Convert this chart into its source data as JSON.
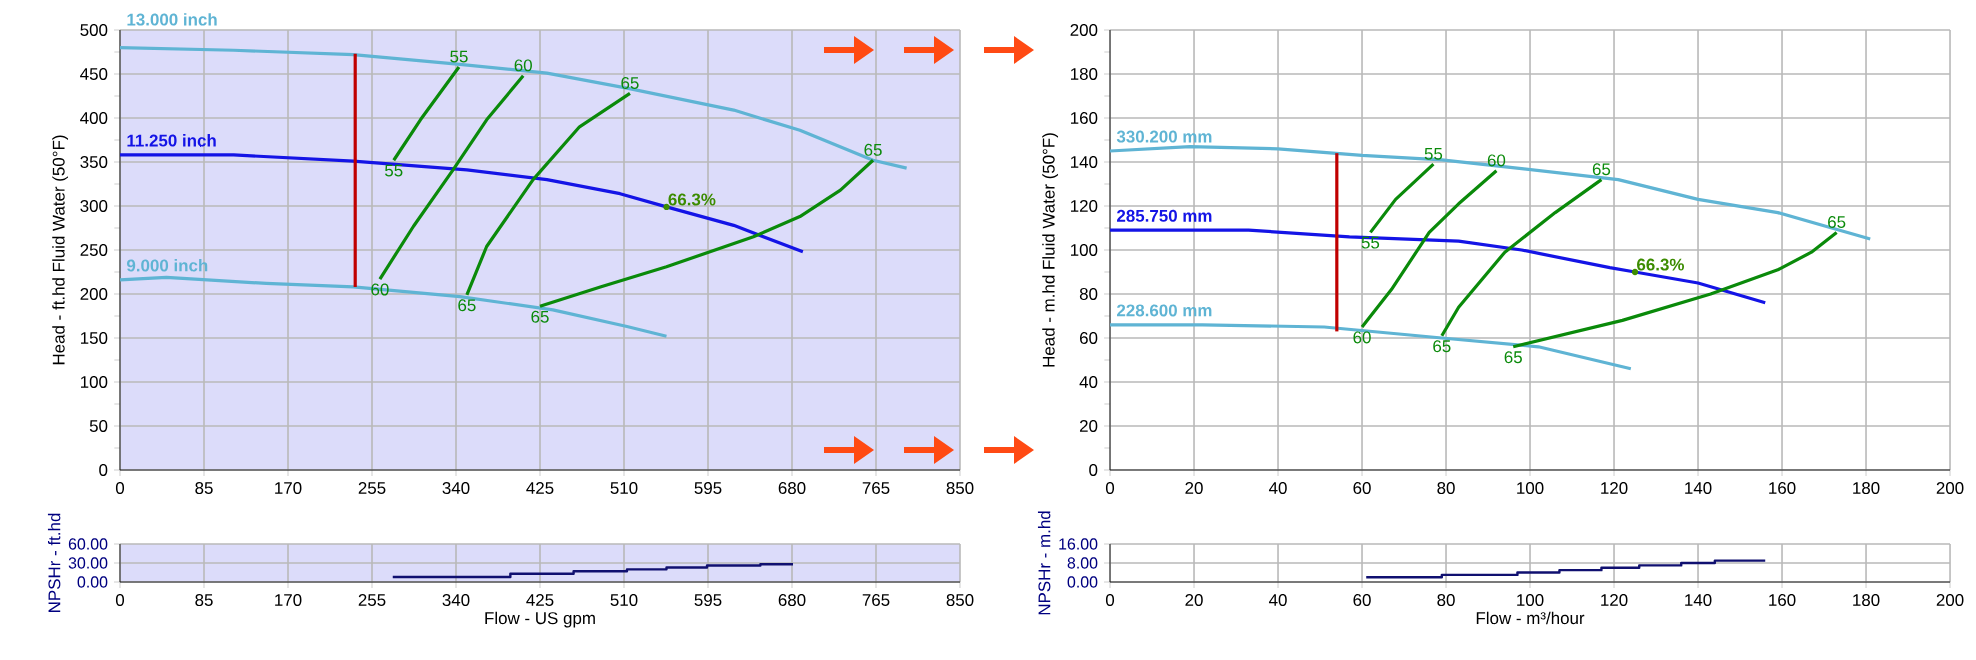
{
  "chart_data": [
    {
      "type": "line",
      "ylabel": "Head - ft.hd Fluid Water (50°F)",
      "xlim": [
        0,
        850
      ],
      "ylim": [
        0,
        500
      ],
      "xticks": [
        0,
        85,
        170,
        255,
        340,
        425,
        510,
        595,
        680,
        765,
        850
      ],
      "yticks": [
        0,
        50,
        100,
        150,
        200,
        250,
        300,
        350,
        400,
        450,
        500
      ],
      "grid": true,
      "series": [
        {
          "name": "13.000 inch",
          "color": "#5fb4d4",
          "x": [
            0,
            115,
            236,
            344,
            432,
            513,
            621,
            688,
            762,
            796
          ],
          "values": [
            480,
            477,
            472,
            461,
            451,
            434,
            409,
            386,
            352,
            343
          ]
        },
        {
          "name": "11.250 inch",
          "color": "#1414e6",
          "x": [
            0,
            115,
            236,
            351,
            432,
            506,
            553,
            621,
            691
          ],
          "values": [
            358,
            358,
            351,
            341,
            330,
            314,
            299,
            278,
            248
          ]
        },
        {
          "name": "9.000 inch",
          "color": "#5fb4d4",
          "x": [
            0,
            47,
            148,
            236,
            344,
            438,
            513,
            553
          ],
          "values": [
            216,
            219,
            212,
            208,
            197,
            182,
            163,
            152
          ]
        },
        {
          "color": "#c00000",
          "x": [
            238,
            238
          ],
          "values": [
            208,
            473
          ]
        },
        {
          "name": "55",
          "color": "#0a8a0a",
          "x": [
            277,
            304,
            343
          ],
          "values": [
            352,
            398,
            458
          ]
        },
        {
          "name": "60",
          "color": "#0a8a0a",
          "x": [
            263,
            297,
            337,
            371,
            408
          ],
          "values": [
            217,
            277,
            341,
            398,
            448
          ]
        },
        {
          "name": "65",
          "color": "#0a8a0a",
          "x": [
            351,
            371,
            418,
            465,
            516
          ],
          "values": [
            199,
            254,
            330,
            390,
            428
          ]
        },
        {
          "name": "65",
          "color": "#0a8a0a",
          "x": [
            425,
            486,
            553,
            641,
            688,
            729,
            762
          ],
          "values": [
            186,
            208,
            231,
            265,
            288,
            318,
            352
          ]
        }
      ],
      "annotations": [
        {
          "text": "66.3%",
          "x": 553,
          "y": 299
        }
      ]
    },
    {
      "type": "step",
      "ylabel": "NPSHr - ft.hd",
      "xlabel": "Flow - US gpm",
      "xlim": [
        0,
        850
      ],
      "ylim": [
        0,
        60
      ],
      "xticks": [
        0,
        85,
        170,
        255,
        340,
        425,
        510,
        595,
        680,
        765,
        850
      ],
      "yticks": [
        {
          "value": 0,
          "label": "0.00"
        },
        {
          "value": 30,
          "label": "30.00"
        },
        {
          "value": 60,
          "label": "60.00"
        }
      ],
      "grid": true,
      "series": [
        {
          "color": "#101070",
          "x": [
            276,
            395,
            459,
            513,
            553,
            594,
            648,
            681
          ],
          "values": [
            8,
            13,
            17,
            20,
            23,
            26,
            28,
            28
          ]
        }
      ]
    },
    {
      "type": "line",
      "ylabel": "Head - m.hd Fluid Water (50°F)",
      "xlim": [
        0,
        200
      ],
      "ylim": [
        0,
        200
      ],
      "xticks": [
        0,
        20,
        40,
        60,
        80,
        100,
        120,
        140,
        160,
        180,
        200
      ],
      "yticks": [
        0,
        20,
        40,
        60,
        80,
        100,
        120,
        140,
        160,
        180,
        200
      ],
      "grid": true,
      "series": [
        {
          "name": "330.200 mm",
          "color": "#5fb4d4",
          "x": [
            0,
            19,
            40,
            60,
            79,
            98,
            121,
            140,
            159,
            181
          ],
          "values": [
            145,
            147,
            146,
            143,
            141,
            137,
            132,
            123,
            117,
            105
          ]
        },
        {
          "name": "285.750 mm",
          "color": "#1414e6",
          "x": [
            0,
            33,
            57,
            83,
            98,
            119,
            125,
            140,
            156
          ],
          "values": [
            109,
            109,
            106,
            104,
            100,
            92,
            90,
            85,
            76
          ]
        },
        {
          "name": "228.600 mm",
          "color": "#5fb4d4",
          "x": [
            0,
            22,
            51,
            79,
            102,
            124
          ],
          "values": [
            66,
            66,
            65,
            60,
            56,
            46
          ]
        },
        {
          "color": "#c00000",
          "x": [
            54,
            54
          ],
          "values": [
            63,
            144
          ]
        },
        {
          "name": "55",
          "color": "#0a8a0a",
          "x": [
            62,
            68,
            77
          ],
          "values": [
            108,
            123,
            139
          ]
        },
        {
          "name": "60",
          "color": "#0a8a0a",
          "x": [
            60,
            67,
            76,
            83,
            92
          ],
          "values": [
            65,
            82,
            108,
            121,
            136
          ]
        },
        {
          "name": "65",
          "color": "#0a8a0a",
          "x": [
            79,
            83,
            94,
            106,
            117
          ],
          "values": [
            61,
            74,
            99,
            117,
            132
          ]
        },
        {
          "name": "65",
          "color": "#0a8a0a",
          "x": [
            96,
            122,
            143,
            159,
            167,
            173
          ],
          "values": [
            56,
            68,
            80,
            91,
            99,
            108
          ]
        }
      ],
      "annotations": [
        {
          "text": "66.3%",
          "x": 125,
          "y": 90
        }
      ]
    },
    {
      "type": "step",
      "ylabel": "NPSHr - m.hd",
      "xlabel": "Flow - m³/hour",
      "xlim": [
        0,
        200
      ],
      "ylim": [
        0,
        16
      ],
      "xticks": [
        0,
        20,
        40,
        60,
        80,
        100,
        120,
        140,
        160,
        180,
        200
      ],
      "yticks": [
        {
          "value": 0,
          "label": "0.00"
        },
        {
          "value": 8,
          "label": "8.00"
        },
        {
          "value": 16,
          "label": "16.00"
        }
      ],
      "grid": true,
      "series": [
        {
          "color": "#101070",
          "x": [
            61,
            79,
            97,
            107,
            117,
            126,
            136,
            144,
            156
          ],
          "values": [
            2,
            3,
            4,
            5,
            6,
            7,
            8,
            9,
            9
          ]
        }
      ]
    }
  ]
}
